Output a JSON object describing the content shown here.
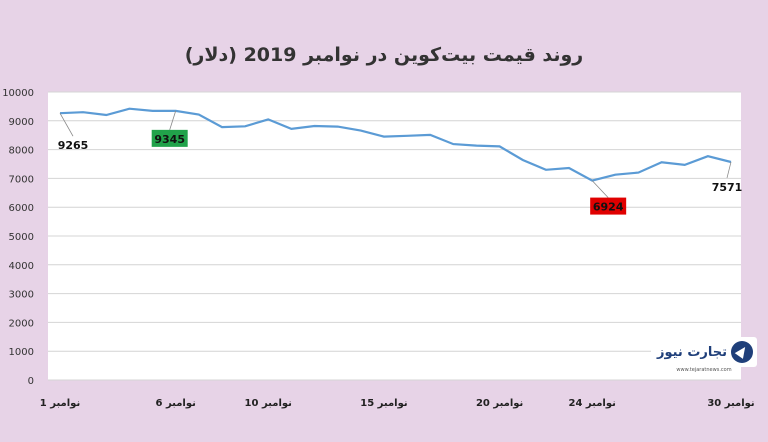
{
  "chart_data": {
    "type": "line",
    "title": "روند قیمت بیت‌کوین در نوامبر 2019 (دلار)",
    "ylim": [
      0,
      10000
    ],
    "yticks": [
      "0",
      "1000",
      "2000",
      "3000",
      "4000",
      "5000",
      "6000",
      "7000",
      "8000",
      "9000",
      "10000"
    ],
    "grid": true,
    "x": [
      1,
      2,
      3,
      4,
      5,
      6,
      7,
      8,
      9,
      10,
      11,
      12,
      13,
      14,
      15,
      16,
      17,
      18,
      19,
      20,
      21,
      22,
      23,
      24,
      25,
      26,
      27,
      28,
      29,
      30
    ],
    "xticks": [
      {
        "x": 1,
        "label": "1 نوامبر"
      },
      {
        "x": 6,
        "label": "6 نوامبر"
      },
      {
        "x": 10,
        "label": "10 نوامبر"
      },
      {
        "x": 15,
        "label": "15 نوامبر"
      },
      {
        "x": 20,
        "label": "20 نوامبر"
      },
      {
        "x": 24,
        "label": "24 نوامبر"
      },
      {
        "x": 30,
        "label": "30 نوامبر"
      }
    ],
    "series": [
      {
        "color": "#5b9bd5",
        "values": [
          9265,
          9300,
          9200,
          9420,
          9345,
          9345,
          9220,
          8780,
          8810,
          9050,
          8720,
          8820,
          8800,
          8660,
          8450,
          8480,
          8510,
          8190,
          8140,
          8110,
          7640,
          7300,
          7360,
          6924,
          7130,
          7200,
          7560,
          7470,
          7770,
          7571
        ]
      }
    ],
    "annotations": [
      {
        "x": 1,
        "y": 9265,
        "text": "9265",
        "style": "plain"
      },
      {
        "x": 6,
        "y": 9345,
        "text": "9345",
        "style": "green"
      },
      {
        "x": 24,
        "y": 6924,
        "text": "6924",
        "style": "red"
      },
      {
        "x": 30,
        "y": 7571,
        "text": "7571",
        "style": "plain"
      }
    ]
  },
  "watermark": {
    "name": "تجارت نیوز",
    "url": "www.tejaratnews.com"
  },
  "colors": {
    "background": "#e7d3e7",
    "plot_background": "#ffffff",
    "line": "#5b9bd5",
    "green_label": "#21a24a",
    "red_label": "#e00000"
  }
}
